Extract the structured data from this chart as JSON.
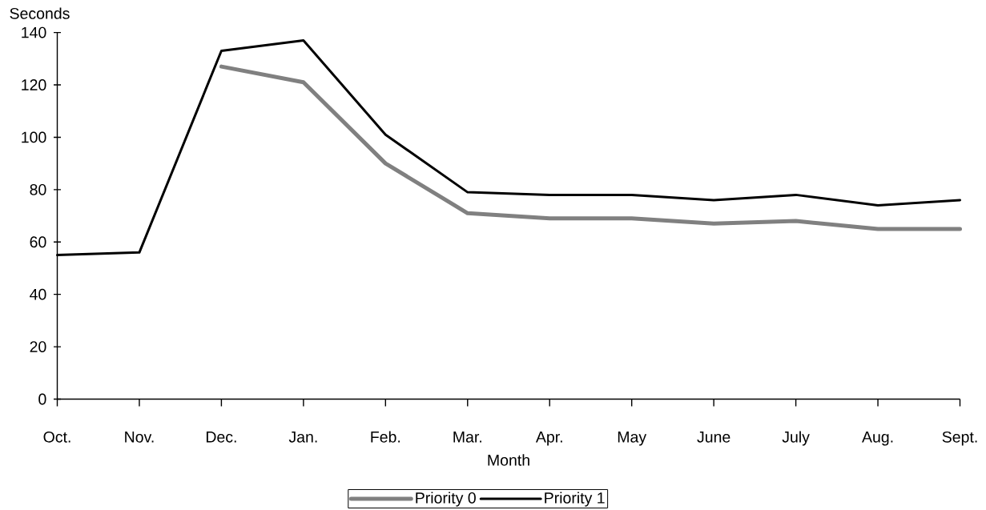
{
  "chart_data": {
    "type": "line",
    "xlabel": "Month",
    "ylabel": "Seconds",
    "categories": [
      "Oct.",
      "Nov.",
      "Dec.",
      "Jan.",
      "Feb.",
      "Mar.",
      "Apr.",
      "May",
      "June",
      "July",
      "Aug.",
      "Sept."
    ],
    "series": [
      {
        "name": "Priority 0",
        "color": "#808080",
        "values": [
          null,
          null,
          127,
          121,
          90,
          71,
          69,
          69,
          67,
          68,
          65,
          65
        ]
      },
      {
        "name": "Priority 1",
        "color": "#000000",
        "values": [
          55,
          56,
          133,
          137,
          101,
          79,
          78,
          78,
          76,
          78,
          74,
          76
        ]
      }
    ],
    "ylim": [
      0,
      140
    ],
    "yticks": [
      0,
      20,
      40,
      60,
      80,
      100,
      120,
      140
    ],
    "legend": "bottom"
  }
}
